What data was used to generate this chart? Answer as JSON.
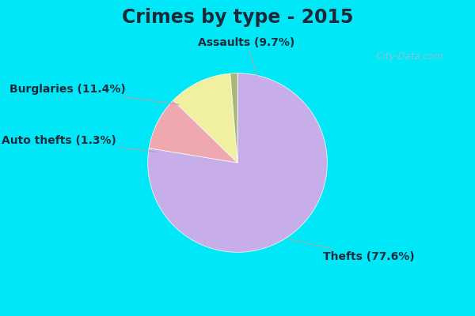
{
  "title": "Crimes by type - 2015",
  "slices": [
    {
      "label": "Thefts",
      "pct": 77.6,
      "color": "#c8aee8"
    },
    {
      "label": "Assaults",
      "pct": 9.7,
      "color": "#f0a8b0"
    },
    {
      "label": "Burglaries",
      "pct": 11.4,
      "color": "#f0f0a0"
    },
    {
      "label": "Auto thefts",
      "pct": 1.3,
      "color": "#a8b878"
    }
  ],
  "background_top": "#00e8f8",
  "background_main": "#d4ecd4",
  "title_fontsize": 17,
  "label_fontsize": 10,
  "watermark": "  City-Data.com"
}
